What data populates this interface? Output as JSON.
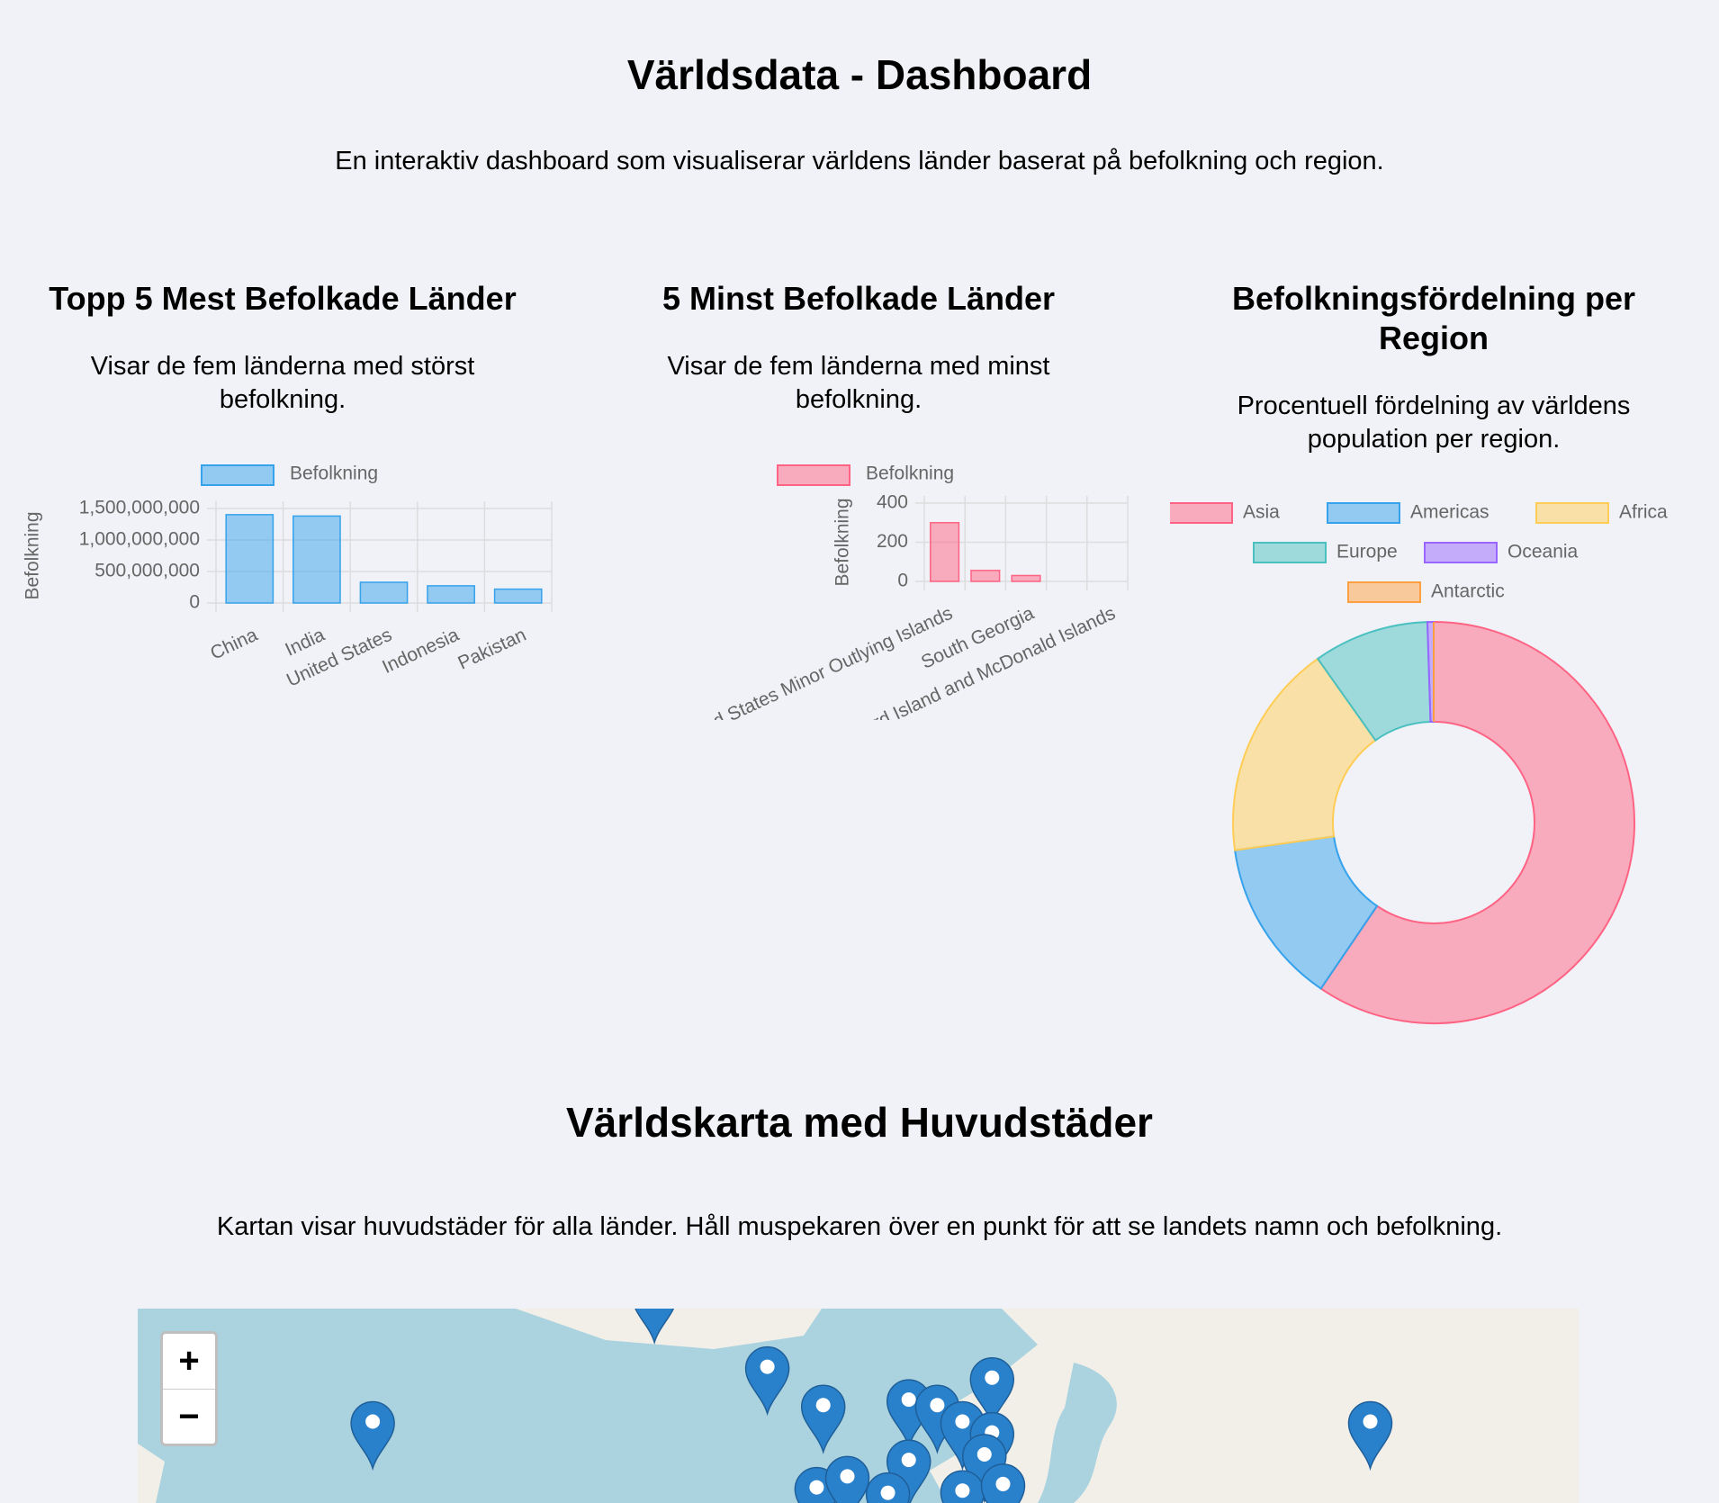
{
  "header": {
    "title": "Världsdata - Dashboard",
    "description": "En interaktiv dashboard som visualiserar världens länder baserat på befolkning och region."
  },
  "chart_data": [
    {
      "type": "bar",
      "title": "Topp 5 Mest Befolkade Länder",
      "subtitle": "Visar de fem länderna med störst befolkning.",
      "y_label": "Befolkning",
      "categories": [
        "China",
        "India",
        "United States",
        "Indonesia",
        "Pakistan"
      ],
      "series": [
        {
          "name": "Befolkning",
          "color": "#36a2eb",
          "values": [
            1402000000,
            1380000000,
            329000000,
            273000000,
            220000000
          ]
        }
      ],
      "ylim": [
        0,
        1500000000
      ],
      "yticks": [
        0,
        {
          "value": 500000000,
          "label": "500,000,000"
        },
        {
          "value": 1000000000,
          "label": "1,000,000,000"
        },
        {
          "value": 1500000000,
          "label": "1,500,000,000"
        }
      ],
      "grid": true
    },
    {
      "type": "bar",
      "title": "5 Minst Befolkade Länder",
      "subtitle": "Visar de fem länderna med minst befolkning.",
      "y_label": "Befolkning",
      "categories": [
        "United States Minor Outlying Islands",
        null,
        "South Georgia",
        null,
        "Heard Island and McDonald Islands"
      ],
      "series": [
        {
          "name": "Befolkning",
          "color": "#ff6384",
          "values": [
            300,
            56,
            30,
            0,
            0
          ]
        }
      ],
      "ylim": [
        0,
        400
      ],
      "yticks": [
        0,
        200,
        400
      ],
      "grid": true
    },
    {
      "type": "doughnut",
      "title": "Befolkningsfördelning per Region",
      "subtitle": "Procentuell fördelning av världens population per region.",
      "categories": [
        "Asia",
        "Americas",
        "Africa",
        "Europe",
        "Oceania",
        "Antarctic"
      ],
      "values": [
        59.5,
        13.3,
        17.4,
        9.3,
        0.5,
        0
      ],
      "colors": [
        "#ff6384",
        "#36a2eb",
        "#ffcd56",
        "#4bc0c0",
        "#9966ff",
        "#ff9f40"
      ]
    }
  ],
  "map": {
    "title": "Världskarta med Huvudstäder",
    "description": "Kartan visar huvudstäder för alla länder. Håll muspekaren över en punkt för att se landets namn och befolkning.",
    "zoom_in": "+",
    "zoom_out": "−"
  }
}
